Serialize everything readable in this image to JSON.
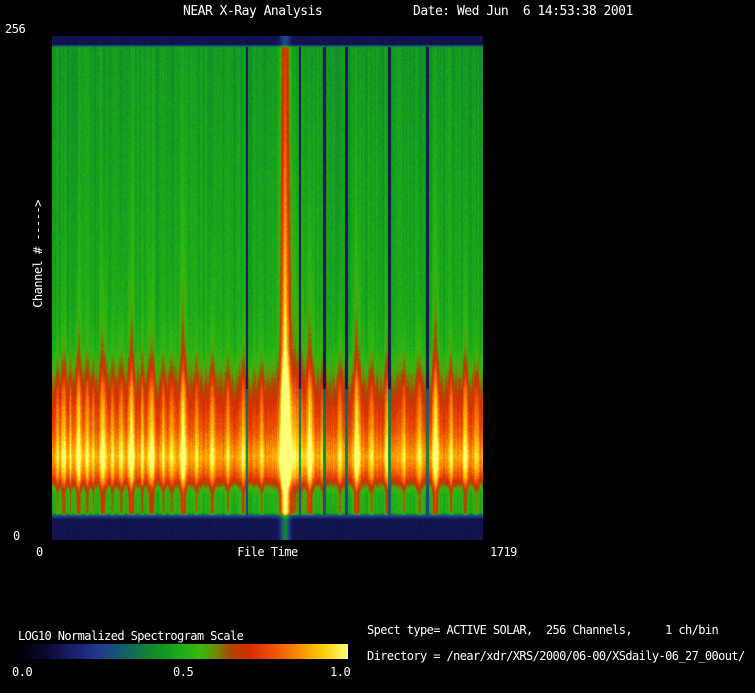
{
  "header": {
    "title": "NEAR X-Ray Analysis",
    "date": "Date: Wed Jun  6 14:53:38 2001"
  },
  "plot": {
    "y_axis_label": "Channel # ----->",
    "y_max_label": "256",
    "y_min_label": "0",
    "x_min_label": "0",
    "x_axis_label": "File Time",
    "x_max_label": "1719"
  },
  "colorbar": {
    "label": "LOG10 Normalized Spectrogram Scale",
    "ticks": [
      "0.0",
      "0.5",
      "1.0"
    ]
  },
  "info": {
    "spect_type_line": "Spect type= ACTIVE SOLAR,  256 Channels,     1 ch/bin",
    "directory_line": "Directory = /near/xdr/XRS/2000/06-00/XSdaily-06_27_00out/"
  },
  "chart_data": {
    "type": "heatmap",
    "title": "NEAR X-Ray Analysis",
    "xlabel": "File Time",
    "ylabel": "Channel #",
    "x_range": [
      0,
      1719
    ],
    "y_range": [
      0,
      256
    ],
    "scale_label": "LOG10 Normalized Spectrogram Scale",
    "scale_range": [
      0.0,
      1.0
    ],
    "description": "Solar X-ray spectrogram: green background over most channels, bright red/orange/yellow emission band in low channels (~30-60), navy zero-signal strips at top and bottom edges, many vertical flare tendrils rising from the band, one large flare near file-time ~930 reaching all channels, and several narrow navy data-gap columns.",
    "colormap_stops": [
      [
        0.0,
        [
          0,
          0,
          0
        ]
      ],
      [
        0.08,
        [
          10,
          10,
          50
        ]
      ],
      [
        0.16,
        [
          25,
          30,
          105
        ]
      ],
      [
        0.24,
        [
          35,
          55,
          145
        ]
      ],
      [
        0.32,
        [
          20,
          95,
          110
        ]
      ],
      [
        0.4,
        [
          15,
          135,
          45
        ]
      ],
      [
        0.48,
        [
          25,
          170,
          25
        ]
      ],
      [
        0.55,
        [
          55,
          185,
          15
        ]
      ],
      [
        0.6,
        [
          110,
          140,
          5
        ]
      ],
      [
        0.64,
        [
          170,
          75,
          0
        ]
      ],
      [
        0.7,
        [
          215,
          45,
          0
        ]
      ],
      [
        0.78,
        [
          240,
          85,
          0
        ]
      ],
      [
        0.86,
        [
          250,
          150,
          0
        ]
      ],
      [
        0.93,
        [
          252,
          210,
          10
        ]
      ],
      [
        1.0,
        [
          255,
          255,
          120
        ]
      ]
    ],
    "base_profile": [
      [
        0.0,
        0.12
      ],
      [
        0.016,
        0.12
      ],
      [
        0.021,
        0.44
      ],
      [
        0.25,
        0.455
      ],
      [
        0.55,
        0.475
      ],
      [
        0.62,
        0.5
      ],
      [
        0.66,
        0.56
      ],
      [
        0.7,
        0.64
      ],
      [
        0.74,
        0.71
      ],
      [
        0.78,
        0.76
      ],
      [
        0.81,
        0.82
      ],
      [
        0.835,
        0.87
      ],
      [
        0.855,
        0.83
      ],
      [
        0.875,
        0.75
      ],
      [
        0.89,
        0.64
      ],
      [
        0.9,
        0.55
      ],
      [
        0.91,
        0.5
      ],
      [
        0.947,
        0.49
      ],
      [
        0.954,
        0.25
      ],
      [
        0.96,
        0.12
      ],
      [
        1.0,
        0.12
      ]
    ],
    "events": [
      [
        0.012,
        0.1,
        0.05,
        2.0
      ],
      [
        0.026,
        0.16,
        0.1,
        2.5
      ],
      [
        0.042,
        0.12,
        0.07,
        2.0
      ],
      [
        0.06,
        0.2,
        0.14,
        3.0
      ],
      [
        0.081,
        0.13,
        0.08,
        2.0
      ],
      [
        0.095,
        0.11,
        0.06,
        2.0
      ],
      [
        0.118,
        0.21,
        0.16,
        3.0
      ],
      [
        0.139,
        0.13,
        0.08,
        2.0
      ],
      [
        0.16,
        0.16,
        0.11,
        2.5
      ],
      [
        0.183,
        0.22,
        0.18,
        3.0
      ],
      [
        0.209,
        0.14,
        0.09,
        2.0
      ],
      [
        0.23,
        0.19,
        0.13,
        3.0
      ],
      [
        0.258,
        0.12,
        0.07,
        2.0
      ],
      [
        0.278,
        0.15,
        0.1,
        2.5
      ],
      [
        0.304,
        0.23,
        0.19,
        3.0
      ],
      [
        0.336,
        0.13,
        0.08,
        2.0
      ],
      [
        0.371,
        0.17,
        0.12,
        2.5
      ],
      [
        0.408,
        0.12,
        0.07,
        2.0
      ],
      [
        0.443,
        0.15,
        0.1,
        2.5
      ],
      [
        0.487,
        0.13,
        0.08,
        2.0
      ],
      [
        0.541,
        0.48,
        1.2,
        4.5
      ],
      [
        0.56,
        0.12,
        0.25,
        12.0
      ],
      [
        0.599,
        0.22,
        0.17,
        3.0
      ],
      [
        0.629,
        0.13,
        0.08,
        2.0
      ],
      [
        0.668,
        0.15,
        0.1,
        2.5
      ],
      [
        0.708,
        0.23,
        0.19,
        3.0
      ],
      [
        0.742,
        0.14,
        0.09,
        2.0
      ],
      [
        0.779,
        0.17,
        0.12,
        2.5
      ],
      [
        0.817,
        0.13,
        0.08,
        2.0
      ],
      [
        0.854,
        0.16,
        0.11,
        2.5
      ],
      [
        0.891,
        0.24,
        0.2,
        3.0
      ],
      [
        0.928,
        0.14,
        0.09,
        2.0
      ],
      [
        0.96,
        0.18,
        0.13,
        2.5
      ],
      [
        0.986,
        0.12,
        0.07,
        2.0
      ]
    ],
    "gaps": [
      [
        0.452,
        1.2
      ],
      [
        0.575,
        1.2
      ],
      [
        0.633,
        1.4
      ],
      [
        0.684,
        1.5
      ],
      [
        0.784,
        1.5
      ],
      [
        0.872,
        1.4
      ]
    ]
  }
}
